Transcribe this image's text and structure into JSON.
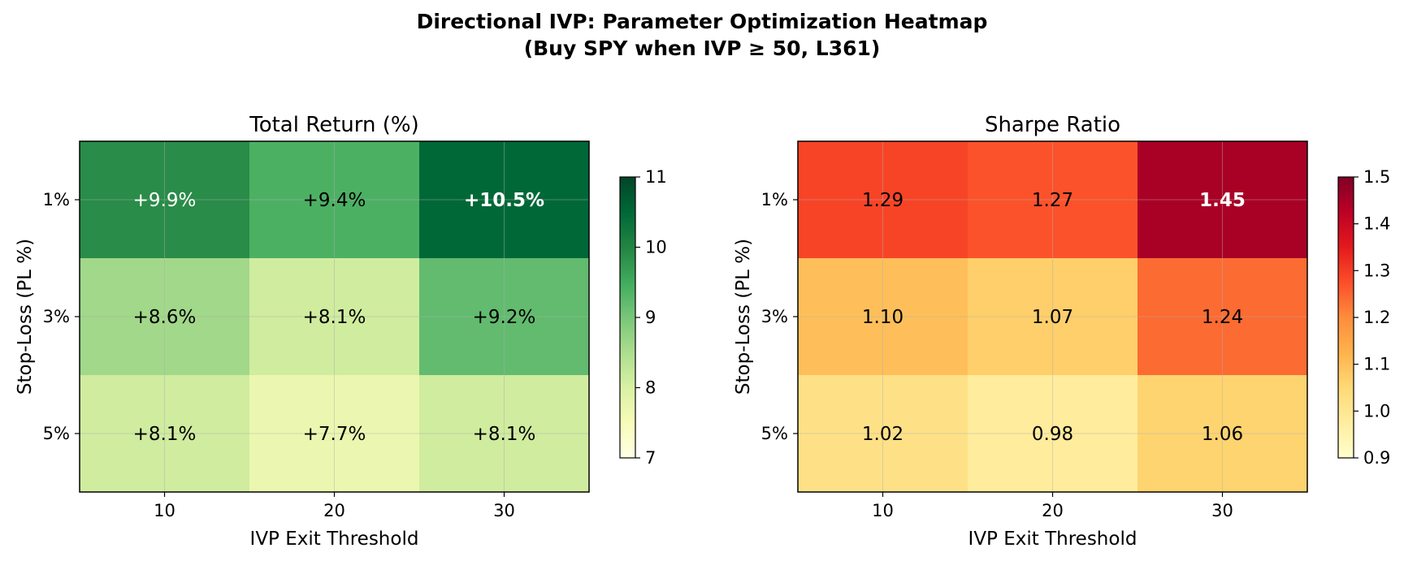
{
  "suptitle": {
    "line1": "Directional IVP: Parameter Optimization Heatmap",
    "line2": "(Buy SPY when IVP ≥ 50, L361)"
  },
  "chart_data": [
    {
      "type": "heatmap",
      "title": "Total Return (%)",
      "xlabel": "IVP Exit Threshold",
      "ylabel": "Stop-Loss (PL %)",
      "x_categories": [
        "10",
        "20",
        "30"
      ],
      "y_categories": [
        "1%",
        "3%",
        "5%"
      ],
      "values": [
        [
          9.9,
          9.4,
          10.5
        ],
        [
          8.6,
          8.1,
          9.2
        ],
        [
          8.1,
          7.7,
          8.1
        ]
      ],
      "cell_labels": [
        [
          "+9.9%",
          "+9.4%",
          "+10.5%"
        ],
        [
          "+8.6%",
          "+8.1%",
          "+9.2%"
        ],
        [
          "+8.1%",
          "+7.7%",
          "+8.1%"
        ]
      ],
      "best_cell": [
        0,
        2
      ],
      "colormap": "RdYlGn-greens",
      "vmin": 7,
      "vmax": 11,
      "colorbar_ticks": [
        "7",
        "8",
        "9",
        "10",
        "11"
      ],
      "colors": [
        "#ffffe5",
        "#f7fcb9",
        "#d9f0a3",
        "#addd8e",
        "#78c679",
        "#41ab5d",
        "#238443",
        "#006837",
        "#004529"
      ]
    },
    {
      "type": "heatmap",
      "title": "Sharpe Ratio",
      "xlabel": "IVP Exit Threshold",
      "ylabel": "Stop-Loss (PL %)",
      "x_categories": [
        "10",
        "20",
        "30"
      ],
      "y_categories": [
        "1%",
        "3%",
        "5%"
      ],
      "values": [
        [
          1.29,
          1.27,
          1.45
        ],
        [
          1.1,
          1.07,
          1.24
        ],
        [
          1.02,
          0.98,
          1.06
        ]
      ],
      "cell_labels": [
        [
          "1.29",
          "1.27",
          "1.45"
        ],
        [
          "1.10",
          "1.07",
          "1.24"
        ],
        [
          "1.02",
          "0.98",
          "1.06"
        ]
      ],
      "best_cell": [
        0,
        2
      ],
      "colormap": "YlOrRd",
      "vmin": 0.9,
      "vmax": 1.5,
      "colorbar_ticks": [
        "0.9",
        "1.0",
        "1.1",
        "1.2",
        "1.3",
        "1.4",
        "1.5"
      ],
      "colors": [
        "#ffffcc",
        "#ffeda0",
        "#fed976",
        "#feb24c",
        "#fd8d3c",
        "#fc4e2a",
        "#e31a1c",
        "#bd0026",
        "#800026"
      ]
    }
  ]
}
